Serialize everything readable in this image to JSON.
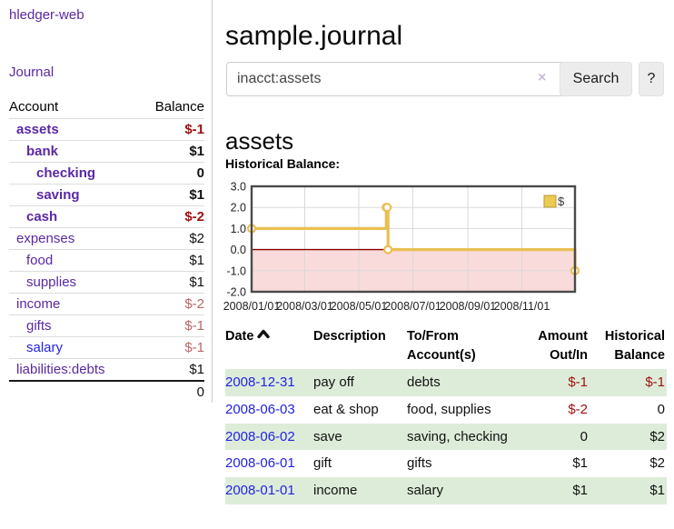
{
  "app": {
    "brand": "hledger-web",
    "nav_journal": "Journal"
  },
  "sidebar": {
    "columns": {
      "account": "Account",
      "balance": "Balance"
    },
    "accounts": [
      {
        "label": "assets",
        "depth": 1,
        "bold": true,
        "blue": false,
        "balance": "$-1",
        "neg": "strong"
      },
      {
        "label": "bank",
        "depth": 2,
        "bold": true,
        "blue": false,
        "balance": "$1",
        "neg": null
      },
      {
        "label": "checking",
        "depth": 3,
        "bold": true,
        "blue": false,
        "balance": "0",
        "neg": null
      },
      {
        "label": "saving",
        "depth": 3,
        "bold": true,
        "blue": false,
        "balance": "$1",
        "neg": null
      },
      {
        "label": "cash",
        "depth": 2,
        "bold": true,
        "blue": false,
        "balance": "$-2",
        "neg": "strong"
      },
      {
        "label": "expenses",
        "depth": 1,
        "bold": false,
        "blue": false,
        "balance": "$2",
        "neg": null
      },
      {
        "label": "food",
        "depth": 2,
        "bold": false,
        "blue": false,
        "balance": "$1",
        "neg": null
      },
      {
        "label": "supplies",
        "depth": 2,
        "bold": false,
        "blue": false,
        "balance": "$1",
        "neg": null
      },
      {
        "label": "income",
        "depth": 1,
        "bold": false,
        "blue": false,
        "balance": "$-2",
        "neg": "soft"
      },
      {
        "label": "gifts",
        "depth": 2,
        "bold": false,
        "blue": false,
        "balance": "$-1",
        "neg": "soft"
      },
      {
        "label": "salary",
        "depth": 2,
        "bold": false,
        "blue": true,
        "balance": "$-1",
        "neg": "soft"
      },
      {
        "label": "liabilities:debts",
        "depth": 1,
        "bold": false,
        "blue": false,
        "balance": "$1",
        "neg": null
      }
    ],
    "total": "0"
  },
  "header": {
    "title": "sample.journal"
  },
  "search": {
    "value": "inacct:assets",
    "clear_label": "×",
    "button_label": "Search",
    "help_label": "?"
  },
  "main": {
    "account_title": "assets",
    "chart_label": "Historical Balance:"
  },
  "chart_data": {
    "type": "line",
    "title": "Historical Balance:",
    "step": true,
    "series": [
      {
        "name": "$",
        "points": [
          {
            "date": "2008-01-01",
            "value": 1
          },
          {
            "date": "2008-06-01",
            "value": 2
          },
          {
            "date": "2008-06-02",
            "value": 2
          },
          {
            "date": "2008-06-03",
            "value": 0
          },
          {
            "date": "2008-12-31",
            "value": -1
          }
        ]
      }
    ],
    "ylim": [
      -2,
      3
    ],
    "y_ticks": [
      "3.0",
      "2.0",
      "1.0",
      "0.0",
      "-1.0",
      "-2.0"
    ],
    "x_ticks": [
      "2008/01/01",
      "2008/03/01",
      "2008/05/01",
      "2008/07/01",
      "2008/09/01",
      "2008/11/01"
    ],
    "legend": {
      "label": "$",
      "position": "top-right"
    },
    "grid": true,
    "colors": {
      "line": "#e9c053",
      "marker_fill": "#ffffff",
      "negative_region": "#fadbdb",
      "zero_line": "#8b0000",
      "grid": "#d9d9d9",
      "border": "#4a4a4a",
      "axis_text": "#222222",
      "legend_fill": "#ecc94f",
      "legend_stroke": "#b89b3e"
    }
  },
  "register": {
    "columns": [
      {
        "label": "Date",
        "align": "left",
        "sorted": "asc"
      },
      {
        "label": "Description",
        "align": "left"
      },
      {
        "label": "To/From Account(s)",
        "align": "left"
      },
      {
        "label": "Amount Out/In",
        "align": "right"
      },
      {
        "label": "Historical Balance",
        "align": "right"
      }
    ],
    "rows": [
      {
        "date": "2008-12-31",
        "description": "pay off",
        "accounts": "debts",
        "amount": "$-1",
        "amount_neg": true,
        "balance": "$-1",
        "balance_neg": true,
        "stripe": true
      },
      {
        "date": "2008-06-03",
        "description": "eat & shop",
        "accounts": "food, supplies",
        "amount": "$-2",
        "amount_neg": true,
        "balance": "0",
        "balance_neg": false,
        "stripe": false
      },
      {
        "date": "2008-06-02",
        "description": "save",
        "accounts": "saving, checking",
        "amount": "0",
        "amount_neg": false,
        "balance": "$2",
        "balance_neg": false,
        "stripe": true
      },
      {
        "date": "2008-06-01",
        "description": "gift",
        "accounts": "gifts",
        "amount": "$1",
        "amount_neg": false,
        "balance": "$2",
        "balance_neg": false,
        "stripe": false
      },
      {
        "date": "2008-01-01",
        "description": "income",
        "accounts": "salary",
        "amount": "$1",
        "amount_neg": false,
        "balance": "$1",
        "balance_neg": false,
        "stripe": true
      }
    ]
  }
}
